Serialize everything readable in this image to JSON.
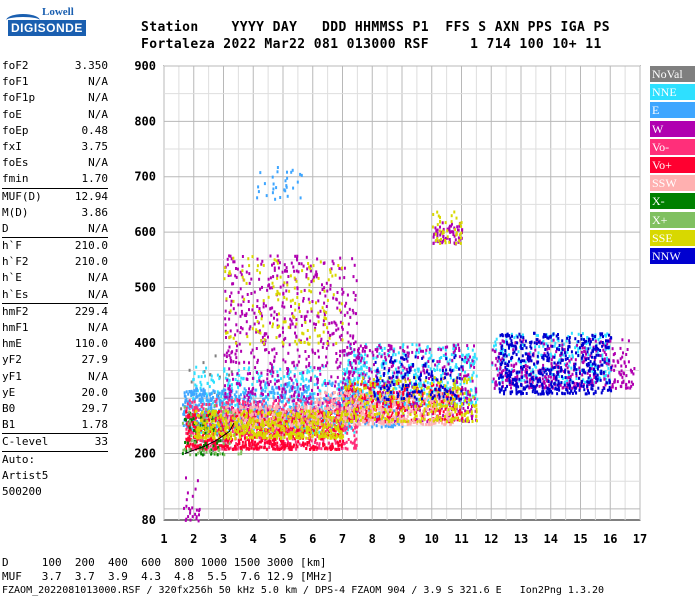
{
  "logo": {
    "brand_top": "Lowell",
    "brand_bottom": "DIGISONDE"
  },
  "header": {
    "line1": "Station    YYYY DAY   DDD HHMMSS P1  FFS S AXN PPS IGA PS",
    "line2": "Fortaleza 2022 Mar22 081 013000 RSF     1 714 100 10+ 11"
  },
  "params": [
    {
      "k": "foF2",
      "v": "3.350"
    },
    {
      "k": "foF1",
      "v": "N/A"
    },
    {
      "k": "foF1p",
      "v": "N/A"
    },
    {
      "k": "foE",
      "v": "N/A"
    },
    {
      "k": "foEp",
      "v": "0.48"
    },
    {
      "k": "fxI",
      "v": "3.75"
    },
    {
      "k": "foEs",
      "v": "N/A"
    },
    {
      "k": "fmin",
      "v": "1.70"
    },
    {
      "sep": true
    },
    {
      "k": "MUF(D)",
      "v": "12.94"
    },
    {
      "k": "M(D)",
      "v": "3.86"
    },
    {
      "k": "D",
      "v": "N/A"
    },
    {
      "sep": true
    },
    {
      "k": "h`F",
      "v": "210.0"
    },
    {
      "k": "h`F2",
      "v": "210.0"
    },
    {
      "k": "h`E",
      "v": "N/A"
    },
    {
      "k": "h`Es",
      "v": "N/A"
    },
    {
      "sep": true
    },
    {
      "k": "hmF2",
      "v": "229.4"
    },
    {
      "k": "hmF1",
      "v": "N/A"
    },
    {
      "k": "hmE",
      "v": "110.0"
    },
    {
      "k": "yF2",
      "v": "27.9"
    },
    {
      "k": "yF1",
      "v": "N/A"
    },
    {
      "k": "yE",
      "v": "20.0"
    },
    {
      "k": "B0",
      "v": "29.7"
    },
    {
      "k": "B1",
      "v": "1.78"
    },
    {
      "sep": true
    },
    {
      "k": "C-level",
      "v": "33"
    },
    {
      "sep": true
    },
    {
      "k": "Auto:",
      "v": ""
    },
    {
      "k": "Artist5",
      "v": ""
    },
    {
      "k": "500200",
      "v": ""
    }
  ],
  "legend": [
    {
      "label": "NoVal",
      "color": "#7f7f7f"
    },
    {
      "label": "NNE",
      "color": "#2ee0ff"
    },
    {
      "label": "E",
      "color": "#3fa6ff"
    },
    {
      "label": "W",
      "color": "#b000b0"
    },
    {
      "label": "Vo-",
      "color": "#ff2f7a"
    },
    {
      "label": "Vo+",
      "color": "#ff0030"
    },
    {
      "label": "SSW",
      "color": "#ffb0b0"
    },
    {
      "label": "X-",
      "color": "#008000"
    },
    {
      "label": "X+",
      "color": "#80c060"
    },
    {
      "label": "SSE",
      "color": "#d8d800"
    },
    {
      "label": "NNW",
      "color": "#0000d0"
    }
  ],
  "footer": {
    "d_line": "D     100  200  400  600  800 1000 1500 3000 [km]",
    "muf_line": "MUF   3.7  3.7  3.9  4.3  4.8  5.5  7.6 12.9 [MHz]",
    "file_line": "FZAOM_2022081013000.RSF / 320fx256h 50 kHz 5.0 km / DPS-4 FZAOM 904 / 3.9 S 321.6 E   Ion2Png 1.3.20"
  },
  "chart_data": {
    "type": "scatter",
    "title": "",
    "xlabel": "",
    "ylabel": "",
    "xlim": [
      1,
      17
    ],
    "ylim": [
      80,
      900
    ],
    "xticks": [
      "1",
      "2",
      "3",
      "4",
      "5",
      "6",
      "7",
      "8",
      "9",
      "10",
      "11",
      "12",
      "13",
      "14",
      "15",
      "16",
      "17"
    ],
    "yticks": [
      "80",
      "200",
      "300",
      "400",
      "500",
      "600",
      "700",
      "800",
      "900"
    ],
    "grid": true,
    "legend_position": "right",
    "profile_curve": {
      "x": [
        1.7,
        2.0,
        2.4,
        2.8,
        3.2,
        3.35
      ],
      "y": [
        200,
        206,
        214,
        225,
        240,
        255
      ]
    },
    "clusters": [
      {
        "name": "NoVal",
        "x": [
          1.5,
          3.4
        ],
        "y": [
          200,
          380
        ],
        "n": 40
      },
      {
        "name": "NNE",
        "x": [
          1.8,
          7.5
        ],
        "y": [
          240,
          360
        ],
        "n": 500
      },
      {
        "name": "NNE",
        "x": [
          7,
          11.5
        ],
        "y": [
          290,
          400
        ],
        "n": 500
      },
      {
        "name": "NNE",
        "x": [
          12,
          16
        ],
        "y": [
          330,
          420
        ],
        "n": 250
      },
      {
        "name": "E",
        "x": [
          1.6,
          4
        ],
        "y": [
          250,
          320
        ],
        "n": 350
      },
      {
        "name": "E",
        "x": [
          4,
          9
        ],
        "y": [
          250,
          330
        ],
        "n": 450
      },
      {
        "name": "W",
        "x": [
          3,
          7.5
        ],
        "y": [
          260,
          560
        ],
        "n": 700
      },
      {
        "name": "W",
        "x": [
          7,
          11.5
        ],
        "y": [
          260,
          400
        ],
        "n": 400
      },
      {
        "name": "W",
        "x": [
          10,
          11
        ],
        "y": [
          580,
          620
        ],
        "n": 60
      },
      {
        "name": "W",
        "x": [
          12,
          16.8
        ],
        "y": [
          320,
          410
        ],
        "n": 350
      },
      {
        "name": "Vo-",
        "x": [
          1.7,
          7.5
        ],
        "y": [
          210,
          300
        ],
        "n": 600
      },
      {
        "name": "Vo+",
        "x": [
          1.7,
          7
        ],
        "y": [
          210,
          280
        ],
        "n": 600
      },
      {
        "name": "Vo+",
        "x": [
          7,
          11
        ],
        "y": [
          260,
          330
        ],
        "n": 300
      },
      {
        "name": "SSW",
        "x": [
          3,
          6
        ],
        "y": [
          250,
          290
        ],
        "n": 200
      },
      {
        "name": "SSW",
        "x": [
          6,
          10.7
        ],
        "y": [
          255,
          315
        ],
        "n": 400
      },
      {
        "name": "X-",
        "x": [
          1.6,
          3
        ],
        "y": [
          200,
          280
        ],
        "n": 60
      },
      {
        "name": "X+",
        "x": [
          1.6,
          3.6
        ],
        "y": [
          200,
          290
        ],
        "n": 60
      },
      {
        "name": "SSE",
        "x": [
          2,
          7
        ],
        "y": [
          230,
          280
        ],
        "n": 500
      },
      {
        "name": "SSE",
        "x": [
          3,
          7
        ],
        "y": [
          400,
          560
        ],
        "n": 150
      },
      {
        "name": "SSE",
        "x": [
          7,
          11.5
        ],
        "y": [
          260,
          340
        ],
        "n": 300
      },
      {
        "name": "SSE",
        "x": [
          10,
          11
        ],
        "y": [
          580,
          640
        ],
        "n": 40
      },
      {
        "name": "NNW",
        "x": [
          12.2,
          16
        ],
        "y": [
          310,
          420
        ],
        "n": 500
      },
      {
        "name": "NNW",
        "x": [
          8,
          11
        ],
        "y": [
          300,
          380
        ],
        "n": 150
      },
      {
        "name": "E",
        "x": [
          4,
          5.6
        ],
        "y": [
          660,
          720
        ],
        "n": 30
      },
      {
        "name": "W",
        "x": [
          1.6,
          2.2
        ],
        "y": [
          80,
          160
        ],
        "n": 25
      }
    ]
  }
}
